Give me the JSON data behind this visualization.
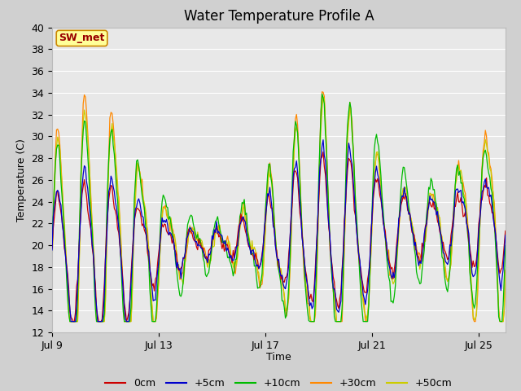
{
  "title": "Water Temperature Profile A",
  "xlabel": "Time",
  "ylabel": "Temperature (C)",
  "ylim": [
    12,
    40
  ],
  "yticks": [
    12,
    14,
    16,
    18,
    20,
    22,
    24,
    26,
    28,
    30,
    32,
    34,
    36,
    38,
    40
  ],
  "xtick_labels": [
    "Jul 9",
    "Jul 13",
    "Jul 17",
    "Jul 21",
    "Jul 25"
  ],
  "xtick_positions": [
    0,
    4,
    8,
    12,
    16
  ],
  "legend_labels": [
    "0cm",
    "+5cm",
    "+10cm",
    "+30cm",
    "+50cm"
  ],
  "legend_colors": [
    "#cc0000",
    "#0000cc",
    "#00bb00",
    "#ff8800",
    "#cccc00"
  ],
  "annotation_text": "SW_met",
  "annotation_bg": "#ffff99",
  "annotation_border": "#cc8800",
  "annotation_text_color": "#990000",
  "fig_bg_color": "#d0d0d0",
  "plot_bg_color": "#e8e8e8",
  "title_fontsize": 12,
  "axis_fontsize": 9,
  "legend_fontsize": 9
}
